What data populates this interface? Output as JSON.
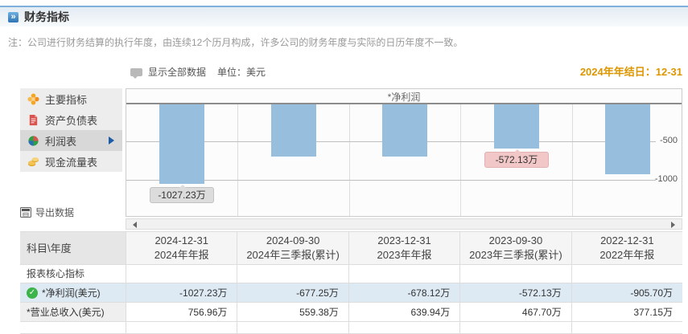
{
  "page": {
    "title": "财务指标",
    "note": "注：公司进行财务结算的执行年度，由连续12个历月构成，许多公司的财务年度与实际的日历年度不一致。",
    "fiscal_year_end": "2024年年结日：12-31"
  },
  "toolbar": {
    "show_all_label": "显示全部数据",
    "unit_label": "单位：美元"
  },
  "sidebar": {
    "items": [
      {
        "label": "主要指标",
        "icon": "flower-icon",
        "selected": false
      },
      {
        "label": "资产负债表",
        "icon": "document-icon",
        "selected": false
      },
      {
        "label": "利润表",
        "icon": "pie-sphere-icon",
        "selected": true
      },
      {
        "label": "现金流量表",
        "icon": "coins-icon",
        "selected": false
      }
    ],
    "export_label": "导出数据"
  },
  "chart_data": {
    "type": "bar",
    "title": "*净利润",
    "categories": [
      "2024-12-31",
      "2024-09-30",
      "2023-12-31",
      "2023-09-30",
      "2022-12-31"
    ],
    "values": [
      -1027.23,
      -677.25,
      -678.12,
      -572.13,
      -905.7
    ],
    "unit": "万",
    "xlabel": "",
    "ylabel": "",
    "ylim": [
      -1500,
      0
    ],
    "yticks": [
      "-500",
      "-1000"
    ],
    "legend": "none",
    "grid": true,
    "bar_color": "#97bedd",
    "tooltips": [
      {
        "bar_index": 0,
        "text": "-1027.23万",
        "style": "gray"
      },
      {
        "bar_index": 3,
        "text": "-572.13万",
        "style": "pink"
      }
    ]
  },
  "table": {
    "corner_label": "科目\\年度",
    "columns": [
      {
        "date": "2024-12-31",
        "period": "2024年年报"
      },
      {
        "date": "2024-09-30",
        "period": "2024年三季报(累计)"
      },
      {
        "date": "2023-12-31",
        "period": "2023年年报"
      },
      {
        "date": "2023-09-30",
        "period": "2023年三季报(累计)"
      },
      {
        "date": "2022-12-31",
        "period": "2022年年报"
      }
    ],
    "section_label": "报表核心指标",
    "rows": [
      {
        "label": "*净利润(美元)",
        "checked": true,
        "highlighted": true,
        "values": [
          "-1027.23万",
          "-677.25万",
          "-678.12万",
          "-572.13万",
          "-905.70万"
        ]
      },
      {
        "label": "*营业总收入(美元)",
        "checked": false,
        "highlighted": false,
        "values": [
          "756.96万",
          "559.38万",
          "639.94万",
          "467.70万",
          "377.15万"
        ]
      }
    ]
  },
  "colors": {
    "bar_blue": "#97bedd",
    "tooltip_gray": "#dcdcdc",
    "tooltip_pink": "#f2c7c7",
    "fiscal_gold": "#dc9600",
    "header_border_blue": "#7fb0dc",
    "highlight_row_blue": "#ddeaf3",
    "check_green": "#3bb44a"
  }
}
